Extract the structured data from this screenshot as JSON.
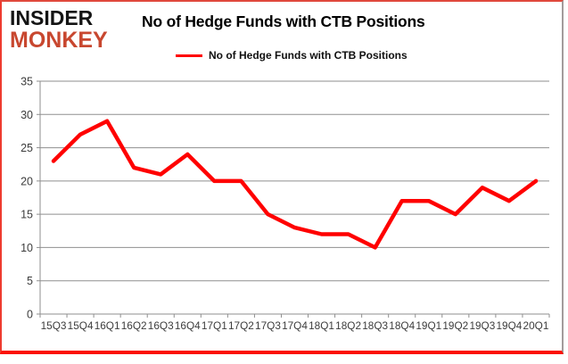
{
  "logo": {
    "line1": "INSIDER",
    "line2": "MONKEY"
  },
  "header": {
    "title": "No of Hedge Funds with CTB Positions"
  },
  "legend": {
    "label": "No of Hedge Funds with CTB Positions",
    "swatch_color": "#ff0000"
  },
  "chart_data": {
    "type": "line",
    "title": "No of Hedge Funds with CTB Positions",
    "categories": [
      "15Q3",
      "15Q4",
      "16Q1",
      "16Q2",
      "16Q3",
      "16Q4",
      "17Q1",
      "17Q2",
      "17Q3",
      "17Q4",
      "18Q1",
      "18Q2",
      "18Q3",
      "18Q4",
      "19Q1",
      "19Q2",
      "19Q3",
      "19Q4",
      "20Q1"
    ],
    "values": [
      23,
      27,
      29,
      22,
      21,
      24,
      20,
      20,
      15,
      13,
      12,
      12,
      10,
      17,
      17,
      15,
      19,
      17,
      20
    ],
    "xlabel": "",
    "ylabel": "",
    "ylim": [
      0,
      35
    ],
    "ytick_step": 5,
    "grid": "on",
    "legend_position": "top",
    "line_color": "#ff0000",
    "grid_color": "#8f8f8f",
    "axis_color": "#8f8f8f"
  }
}
